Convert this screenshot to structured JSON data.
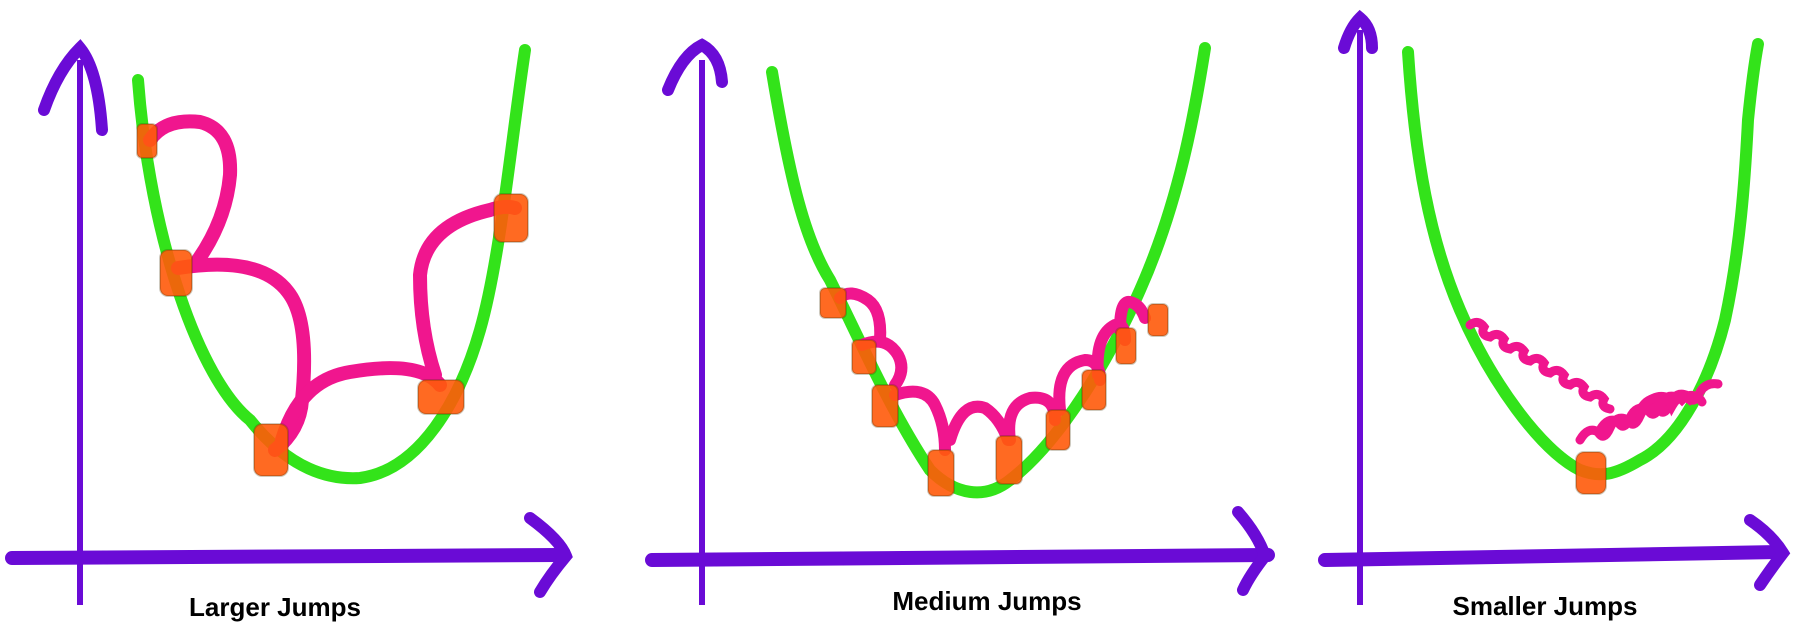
{
  "panels": [
    {
      "label": "Larger Jumps"
    },
    {
      "label": "Medium Jumps"
    },
    {
      "label": "Smaller Jumps"
    }
  ],
  "colors": {
    "axis": "#6a0bd6",
    "curve": "#33e31a",
    "jump": "#f0168e",
    "point": "#ff5a0a",
    "label": "#000000"
  }
}
